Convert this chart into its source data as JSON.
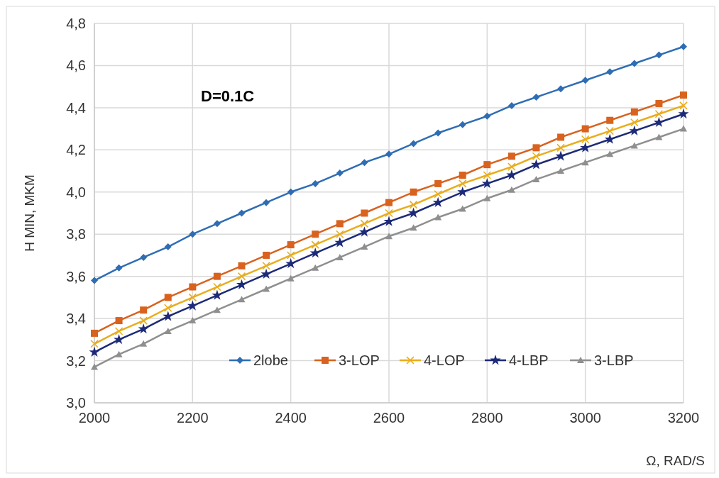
{
  "chart_data": {
    "type": "line",
    "xlabel": "Ω, RAD/S",
    "ylabel": "H MIN, MKM",
    "annotations": [
      "D=0.1C"
    ],
    "x": [
      2000,
      2050,
      2100,
      2150,
      2200,
      2250,
      2300,
      2350,
      2400,
      2450,
      2500,
      2550,
      2600,
      2650,
      2700,
      2750,
      2800,
      2850,
      2900,
      2950,
      3000,
      3050,
      3100,
      3150,
      3200
    ],
    "series": [
      {
        "name": "2lobe",
        "color": "#2e6db4",
        "marker": "diamond",
        "values": [
          3.58,
          3.64,
          3.69,
          3.74,
          3.8,
          3.85,
          3.9,
          3.95,
          4.0,
          4.04,
          4.09,
          4.14,
          4.18,
          4.23,
          4.28,
          4.32,
          4.36,
          4.41,
          4.45,
          4.49,
          4.53,
          4.57,
          4.61,
          4.65,
          4.69
        ]
      },
      {
        "name": "3-LOP",
        "color": "#d8621e",
        "marker": "square",
        "values": [
          3.33,
          3.39,
          3.44,
          3.5,
          3.55,
          3.6,
          3.65,
          3.7,
          3.75,
          3.8,
          3.85,
          3.9,
          3.95,
          4.0,
          4.04,
          4.08,
          4.13,
          4.17,
          4.21,
          4.26,
          4.3,
          4.34,
          4.38,
          4.42,
          4.46
        ]
      },
      {
        "name": "4-LOP",
        "color": "#e9ad1c",
        "marker": "cross",
        "values": [
          3.28,
          3.34,
          3.39,
          3.45,
          3.5,
          3.55,
          3.6,
          3.65,
          3.7,
          3.75,
          3.8,
          3.85,
          3.9,
          3.94,
          3.99,
          4.04,
          4.08,
          4.12,
          4.17,
          4.21,
          4.25,
          4.29,
          4.33,
          4.37,
          4.41
        ]
      },
      {
        "name": "4-LBP",
        "color": "#1c2a78",
        "marker": "star",
        "values": [
          3.24,
          3.3,
          3.35,
          3.41,
          3.46,
          3.51,
          3.56,
          3.61,
          3.66,
          3.71,
          3.76,
          3.81,
          3.86,
          3.9,
          3.95,
          4.0,
          4.04,
          4.08,
          4.13,
          4.17,
          4.21,
          4.25,
          4.29,
          4.33,
          4.37
        ]
      },
      {
        "name": "3-LBP",
        "color": "#8f8f8f",
        "marker": "triangle",
        "values": [
          3.17,
          3.23,
          3.28,
          3.34,
          3.39,
          3.44,
          3.49,
          3.54,
          3.59,
          3.64,
          3.69,
          3.74,
          3.79,
          3.83,
          3.88,
          3.92,
          3.97,
          4.01,
          4.06,
          4.1,
          4.14,
          4.18,
          4.22,
          4.26,
          4.3
        ]
      }
    ],
    "xlim": [
      2000,
      3200
    ],
    "xticks": [
      2000,
      2200,
      2400,
      2600,
      2800,
      3000,
      3200
    ],
    "ylim": [
      3.0,
      4.8
    ],
    "yticks": [
      {
        "value": 3.0,
        "label": "3,0"
      },
      {
        "value": 3.2,
        "label": "3,2"
      },
      {
        "value": 3.4,
        "label": "3,4"
      },
      {
        "value": 3.6,
        "label": "3,6"
      },
      {
        "value": 3.8,
        "label": "3,8"
      },
      {
        "value": 4.0,
        "label": "4,0"
      },
      {
        "value": 4.2,
        "label": "4,2"
      },
      {
        "value": 4.4,
        "label": "4,4"
      },
      {
        "value": 4.6,
        "label": "4,6"
      },
      {
        "value": 4.8,
        "label": "4,8"
      }
    ],
    "grid": true,
    "legend": "bottom",
    "line_style": "solid"
  }
}
